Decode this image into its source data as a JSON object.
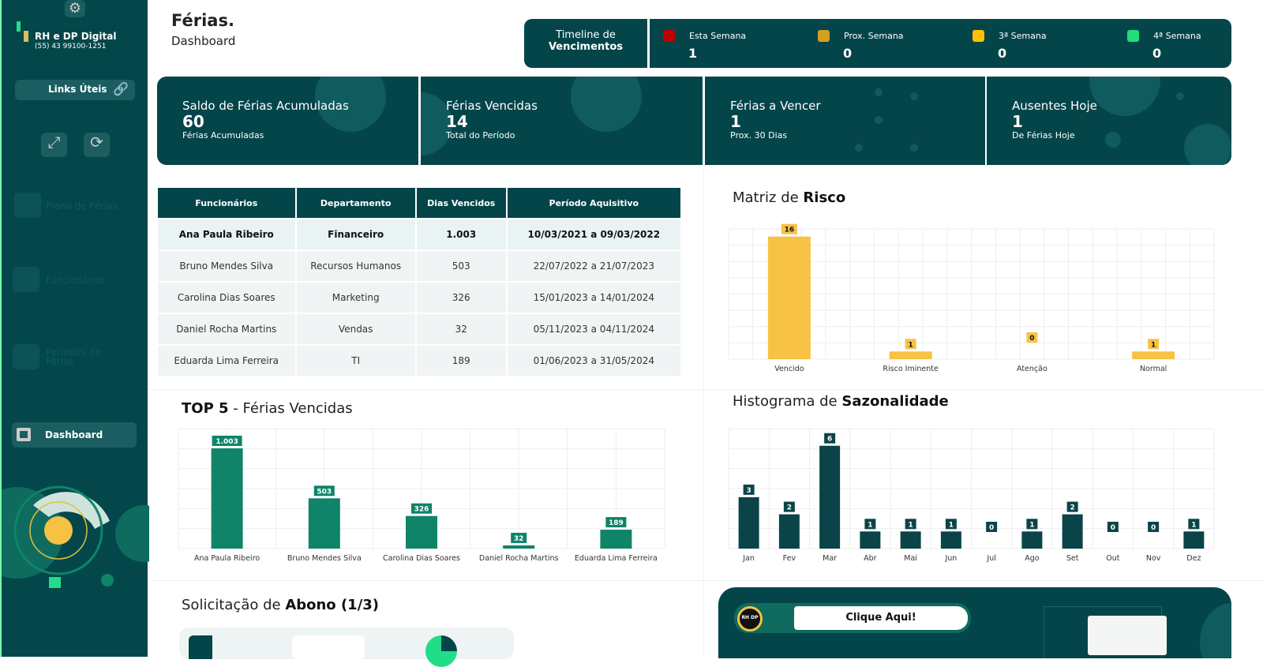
{
  "sidebar": {
    "brand": "RH e DP Digital",
    "phone": "(55) 43 99100-1251",
    "links_label": "Links Úteis",
    "nav": [
      {
        "label": "Plano de Férias"
      },
      {
        "label": "Funcionários"
      },
      {
        "label": "Períodos de Férias"
      },
      {
        "label": "Dashboard"
      }
    ]
  },
  "header": {
    "title": "Férias.",
    "subtitle": "Dashboard"
  },
  "timeline": {
    "label1": "Timeline de",
    "label2": "Vencimentos",
    "items": [
      {
        "label": "Esta Semana",
        "value": "1",
        "color": "#c00000"
      },
      {
        "label": "Prox. Semana",
        "value": "0",
        "color": "#d4a020"
      },
      {
        "label": "3ª Semana",
        "value": "0",
        "color": "#ffc000"
      },
      {
        "label": "4ª Semana",
        "value": "0",
        "color": "#22dd77"
      }
    ]
  },
  "kpis": [
    {
      "title": "Saldo de Férias Acumuladas",
      "value": "60",
      "sub": "Férias Acumuladas"
    },
    {
      "title": "Férias Vencidas",
      "value": "14",
      "sub": "Total do Período"
    },
    {
      "title": "Férias a Vencer",
      "value": "1",
      "sub": "Prox. 30 Dias"
    },
    {
      "title": "Ausentes Hoje",
      "value": "1",
      "sub": "De Férias Hoje"
    }
  ],
  "table": {
    "headers": [
      "Funcionários",
      "Departamento",
      "Dias Vencidos",
      "Período Aquisitivo"
    ],
    "rows": [
      [
        "Ana Paula Ribeiro",
        "Financeiro",
        "1.003",
        "10/03/2021 a 09/03/2022"
      ],
      [
        "Bruno Mendes Silva",
        "Recursos Humanos",
        "503",
        "22/07/2022 a 21/07/2023"
      ],
      [
        "Carolina Dias Soares",
        "Marketing",
        "326",
        "15/01/2023 a 14/01/2024"
      ],
      [
        "Daniel Rocha Martins",
        "Vendas",
        "32",
        "05/11/2023 a 04/11/2024"
      ],
      [
        "Eduarda Lima Ferreira",
        "TI",
        "189",
        "01/06/2023 a 31/05/2024"
      ]
    ]
  },
  "risk_title": {
    "a": "Matriz de ",
    "b": "Risco"
  },
  "top5_title": {
    "a": "TOP 5",
    "b": " - Férias Vencidas"
  },
  "hist_title": {
    "a": "Histograma de ",
    "b": "Sazonalidade"
  },
  "abono_title": {
    "a": "Solicitação de ",
    "b": "Abono (1/3)"
  },
  "promo": {
    "button": "Clique Aqui!",
    "logo": "RH e DP Digital"
  },
  "chart_data": [
    {
      "type": "bar",
      "categories": [
        "Vencido",
        "Risco Iminente",
        "Atenção",
        "Normal"
      ],
      "values": [
        16,
        1,
        0,
        1
      ],
      "ylim": [
        0,
        17
      ],
      "grid": true,
      "color": "#f7c244"
    },
    {
      "type": "bar",
      "categories": [
        "Ana Paula Ribeiro",
        "Bruno Mendes Silva",
        "Carolina Dias Soares",
        "Daniel Rocha Martins",
        "Eduarda Lima Ferreira"
      ],
      "values": [
        1003,
        503,
        326,
        32,
        189
      ],
      "labels": [
        "1.003",
        "503",
        "326",
        "32",
        "189"
      ],
      "ylim": [
        0,
        1200
      ],
      "grid": true,
      "color": "#0f8468"
    },
    {
      "type": "bar",
      "categories": [
        "Jan",
        "Fev",
        "Mar",
        "Abr",
        "Mai",
        "Jun",
        "Jul",
        "Ago",
        "Set",
        "Out",
        "Nov",
        "Dez"
      ],
      "values": [
        3,
        2,
        6,
        1,
        1,
        1,
        0,
        1,
        2,
        0,
        0,
        1
      ],
      "ylim": [
        0,
        7
      ],
      "grid": true,
      "color": "#0b4448"
    }
  ]
}
